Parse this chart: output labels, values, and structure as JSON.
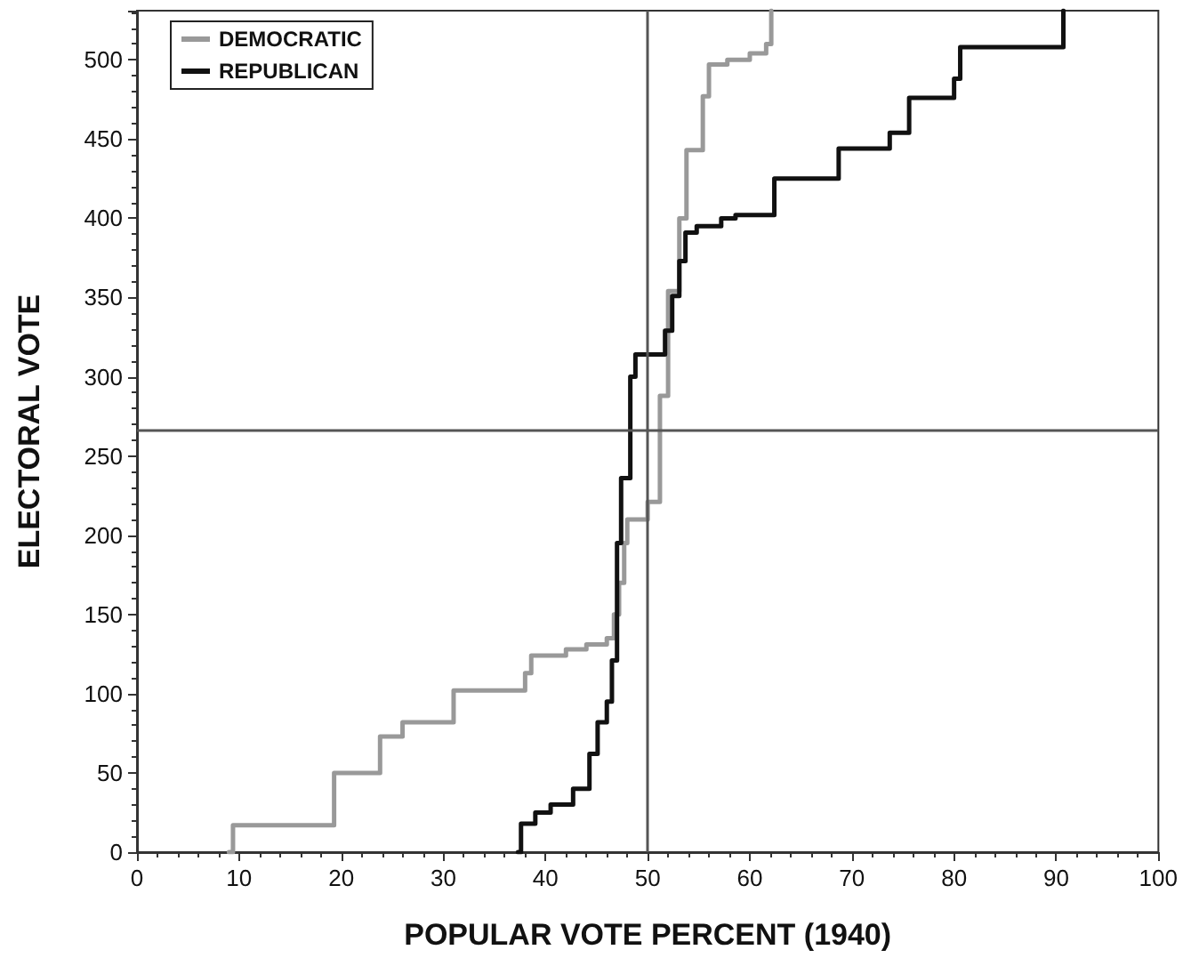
{
  "chart_data": {
    "type": "step",
    "xlabel": "POPULAR VOTE PERCENT (1940)",
    "ylabel": "ELECTORAL VOTE",
    "xlim": [
      0,
      100
    ],
    "xticks": [
      0,
      10,
      20,
      30,
      40,
      50,
      60,
      70,
      80,
      90,
      100
    ],
    "ylim": [
      0,
      531
    ],
    "yticks": [
      0,
      50,
      100,
      150,
      200,
      250,
      300,
      350,
      400,
      450,
      500
    ],
    "grid": false,
    "legend": "top left",
    "marker": "none",
    "line_style": "solid",
    "ref_lines": [
      {
        "axis": "x",
        "value": 50,
        "color": "#555555"
      },
      {
        "axis": "y",
        "value": 266,
        "color": "#555555"
      }
    ],
    "series": [
      {
        "name": "DEMOCRATIC",
        "color": "#999999",
        "x": [
          9,
          9.4,
          19.3,
          23.8,
          26,
          31,
          38,
          38.6,
          42,
          44,
          46,
          46.7,
          47.2,
          47.7,
          48,
          50,
          51.2,
          52,
          53.1,
          53.8,
          55.4,
          56,
          57.8,
          60,
          61.6,
          62.1
        ],
        "values": [
          0,
          17,
          50,
          73,
          82,
          102,
          113,
          124,
          128,
          131,
          135,
          150,
          170,
          195,
          210,
          221,
          288,
          354,
          400,
          443,
          477,
          497,
          500,
          504,
          510,
          531
        ]
      },
      {
        "name": "REPUBLICAN",
        "color": "#111111",
        "x": [
          37.3,
          37.6,
          39,
          40.5,
          42.7,
          44.3,
          45.1,
          46,
          46.5,
          47,
          47.4,
          48.3,
          48.8,
          51.7,
          52.4,
          53.1,
          53.7,
          54.8,
          57.2,
          58.6,
          62.4,
          68.7,
          73.7,
          75.6,
          80,
          80.6,
          90.7
        ],
        "values": [
          0,
          18,
          25,
          30,
          40,
          62,
          82,
          95,
          121,
          195,
          236,
          300,
          314,
          329,
          351,
          373,
          391,
          395,
          400,
          402,
          425,
          444,
          454,
          476,
          488,
          508,
          531
        ]
      }
    ]
  }
}
